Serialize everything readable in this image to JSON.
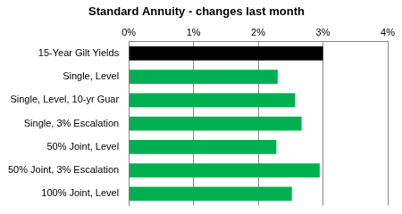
{
  "chart_data": {
    "type": "bar",
    "title": "Standard Annuity - changes last month",
    "orientation": "horizontal",
    "categories": [
      "15-Year Gilt Yields",
      "Single, Level",
      "Single, Level, 10-yr Guar",
      "Single, 3% Escalation",
      "50% Joint, Level",
      "50% Joint, 3% Escalation",
      "100% Joint, Level"
    ],
    "values": [
      3,
      2.3,
      2.57,
      2.67,
      2.28,
      2.95,
      2.52
    ],
    "colors": [
      "#000000",
      "#00b050",
      "#00b050",
      "#00b050",
      "#00b050",
      "#00b050",
      "#00b050"
    ],
    "xlim": [
      0,
      4
    ],
    "xticks": [
      {
        "value": 0,
        "label": "0%"
      },
      {
        "value": 1,
        "label": "1%"
      },
      {
        "value": 2,
        "label": "2%"
      },
      {
        "value": 3,
        "label": "3%"
      },
      {
        "value": 4,
        "label": "4%"
      }
    ],
    "grid": true
  }
}
